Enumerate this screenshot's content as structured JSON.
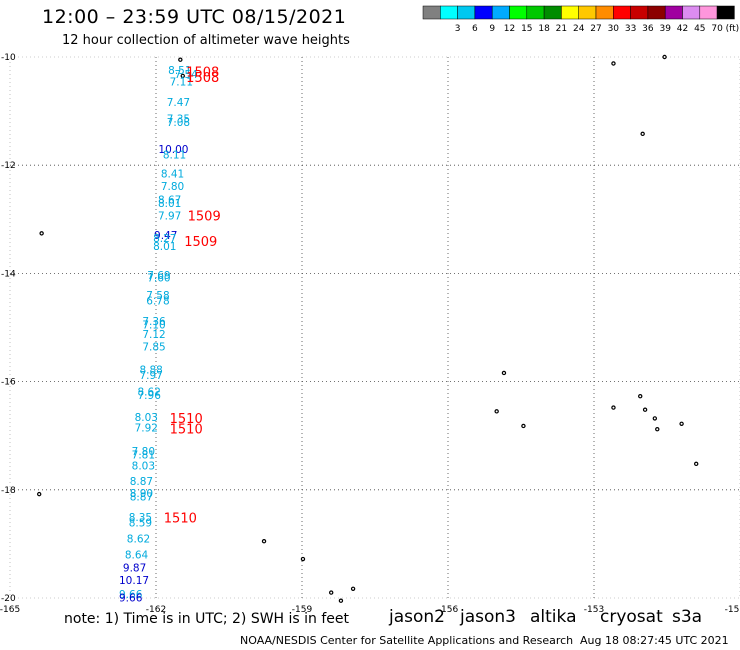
{
  "header": {
    "title": "12:00 – 23:59 UTC 08/15/2021",
    "subtitle": "12 hour collection of altimeter wave heights"
  },
  "legend": {
    "bins": [
      {
        "label": "",
        "color": "#808080"
      },
      {
        "label": "3",
        "color": "#00ffff"
      },
      {
        "label": "6",
        "color": "#00c8f0"
      },
      {
        "label": "9",
        "color": "#0000ff"
      },
      {
        "label": "12",
        "color": "#00aaff"
      },
      {
        "label": "15",
        "color": "#00ff00"
      },
      {
        "label": "18",
        "color": "#00c800"
      },
      {
        "label": "21",
        "color": "#008c00"
      },
      {
        "label": "24",
        "color": "#ffff00"
      },
      {
        "label": "27",
        "color": "#ffc800"
      },
      {
        "label": "30",
        "color": "#ff8c00"
      },
      {
        "label": "33",
        "color": "#ff0000"
      },
      {
        "label": "36",
        "color": "#c80000"
      },
      {
        "label": "39",
        "color": "#8c0000"
      },
      {
        "label": "42",
        "color": "#a000a0"
      },
      {
        "label": "45",
        "color": "#dc8cf0"
      },
      {
        "label": "70",
        "color": "#ff96dc"
      },
      {
        "label": "(ft)",
        "color": "#000000"
      }
    ]
  },
  "axes": {
    "lat_labels": [
      "-10",
      "-12",
      "-14",
      "-16",
      "-18",
      "-20"
    ],
    "lon_labels": [
      "-165",
      "-162",
      "-159",
      "-156",
      "-153",
      "-15"
    ]
  },
  "wave_heights": [
    {
      "value": "8.51",
      "lon": -161.75,
      "lat": -10.24,
      "color": "#00aadd"
    },
    {
      "value": "7.54",
      "lon": -161.62,
      "lat": -10.31,
      "color": "#00aadd"
    },
    {
      "value": "7.11",
      "lon": -161.72,
      "lat": -10.45,
      "color": "#00aadd"
    },
    {
      "value": "7.47",
      "lon": -161.78,
      "lat": -10.83,
      "color": "#00aadd"
    },
    {
      "value": "7.35",
      "lon": -161.78,
      "lat": -11.14,
      "color": "#00aadd"
    },
    {
      "value": "7.08",
      "lon": -161.78,
      "lat": -11.2,
      "color": "#00aadd"
    },
    {
      "value": "10.00",
      "lon": -161.95,
      "lat": -11.7,
      "color": "#0000cc"
    },
    {
      "value": "8.11",
      "lon": -161.86,
      "lat": -11.8,
      "color": "#00aadd"
    },
    {
      "value": "8.41",
      "lon": -161.9,
      "lat": -12.15,
      "color": "#00aadd"
    },
    {
      "value": "7.80",
      "lon": -161.9,
      "lat": -12.38,
      "color": "#00aadd"
    },
    {
      "value": "8.67",
      "lon": -161.96,
      "lat": -12.63,
      "color": "#00aadd"
    },
    {
      "value": "8.01",
      "lon": -161.96,
      "lat": -12.7,
      "color": "#00aadd"
    },
    {
      "value": "7.97",
      "lon": -161.96,
      "lat": -12.93,
      "color": "#00aadd"
    },
    {
      "value": "9.47",
      "lon": -162.04,
      "lat": -13.29,
      "color": "#0000cc"
    },
    {
      "value": "8.27",
      "lon": -162.06,
      "lat": -13.35,
      "color": "#00aadd"
    },
    {
      "value": "8.01",
      "lon": -162.06,
      "lat": -13.49,
      "color": "#00aadd"
    },
    {
      "value": "7.69",
      "lon": -162.18,
      "lat": -14.03,
      "color": "#00aadd"
    },
    {
      "value": "7.60",
      "lon": -162.18,
      "lat": -14.08,
      "color": "#00aadd"
    },
    {
      "value": "7.58",
      "lon": -162.2,
      "lat": -14.4,
      "color": "#00aadd"
    },
    {
      "value": "6.78",
      "lon": -162.2,
      "lat": -14.5,
      "color": "#00aadd"
    },
    {
      "value": "7.36",
      "lon": -162.28,
      "lat": -14.88,
      "color": "#00aadd"
    },
    {
      "value": "7.10",
      "lon": -162.28,
      "lat": -14.94,
      "color": "#00aadd"
    },
    {
      "value": "7.12",
      "lon": -162.28,
      "lat": -15.12,
      "color": "#00aadd"
    },
    {
      "value": "7.85",
      "lon": -162.28,
      "lat": -15.35,
      "color": "#00aadd"
    },
    {
      "value": "8.88",
      "lon": -162.34,
      "lat": -15.78,
      "color": "#00aadd"
    },
    {
      "value": "7.97",
      "lon": -162.34,
      "lat": -15.88,
      "color": "#00aadd"
    },
    {
      "value": "8.62",
      "lon": -162.38,
      "lat": -16.18,
      "color": "#00aadd"
    },
    {
      "value": "7.96",
      "lon": -162.38,
      "lat": -16.25,
      "color": "#00aadd"
    },
    {
      "value": "8.03",
      "lon": -162.44,
      "lat": -16.65,
      "color": "#00aadd"
    },
    {
      "value": "7.92",
      "lon": -162.44,
      "lat": -16.85,
      "color": "#00aadd"
    },
    {
      "value": "7.80",
      "lon": -162.5,
      "lat": -17.28,
      "color": "#00aadd"
    },
    {
      "value": "7.81",
      "lon": -162.5,
      "lat": -17.35,
      "color": "#00aadd"
    },
    {
      "value": "8.03",
      "lon": -162.5,
      "lat": -17.55,
      "color": "#00aadd"
    },
    {
      "value": "8.87",
      "lon": -162.54,
      "lat": -17.84,
      "color": "#00aadd"
    },
    {
      "value": "8.90",
      "lon": -162.54,
      "lat": -18.06,
      "color": "#00aadd"
    },
    {
      "value": "8.87",
      "lon": -162.54,
      "lat": -18.12,
      "color": "#00aadd"
    },
    {
      "value": "8.35",
      "lon": -162.56,
      "lat": -18.5,
      "color": "#00aadd"
    },
    {
      "value": "8.59",
      "lon": -162.56,
      "lat": -18.6,
      "color": "#00aadd"
    },
    {
      "value": "8.62",
      "lon": -162.6,
      "lat": -18.9,
      "color": "#00aadd"
    },
    {
      "value": "8.64",
      "lon": -162.64,
      "lat": -19.2,
      "color": "#00aadd"
    },
    {
      "value": "9.87",
      "lon": -162.68,
      "lat": -19.44,
      "color": "#0000cc"
    },
    {
      "value": "10.17",
      "lon": -162.76,
      "lat": -19.67,
      "color": "#0000cc"
    },
    {
      "value": "9.66",
      "lon": -162.76,
      "lat": -19.93,
      "color": "#00aadd"
    },
    {
      "value": "9.66",
      "lon": -162.76,
      "lat": -19.99,
      "color": "#0000cc"
    }
  ],
  "storm_labels": [
    {
      "text": "1508",
      "lon": -161.38,
      "lat": -10.27
    },
    {
      "text": "1508",
      "lon": -161.38,
      "lat": -10.37
    },
    {
      "text": "1509",
      "lon": -161.35,
      "lat": -12.93
    },
    {
      "text": "1509",
      "lon": -161.42,
      "lat": -13.4
    },
    {
      "text": "1510",
      "lon": -161.72,
      "lat": -16.67
    },
    {
      "text": "1510",
      "lon": -161.72,
      "lat": -16.87
    },
    {
      "text": "1510",
      "lon": -161.84,
      "lat": -18.51
    }
  ],
  "islands": [
    {
      "lon": -161.5,
      "lat": -10.05
    },
    {
      "lon": -161.45,
      "lat": -10.35
    },
    {
      "lon": -164.35,
      "lat": -13.26
    },
    {
      "lon": -152.6,
      "lat": -10.12
    },
    {
      "lon": -151.55,
      "lat": -10.0
    },
    {
      "lon": -152.0,
      "lat": -11.42
    },
    {
      "lon": -154.85,
      "lat": -15.84
    },
    {
      "lon": -155.0,
      "lat": -16.55
    },
    {
      "lon": -154.45,
      "lat": -16.82
    },
    {
      "lon": -152.6,
      "lat": -16.48
    },
    {
      "lon": -152.05,
      "lat": -16.27
    },
    {
      "lon": -151.95,
      "lat": -16.52
    },
    {
      "lon": -151.75,
      "lat": -16.68
    },
    {
      "lon": -151.7,
      "lat": -16.88
    },
    {
      "lon": -151.2,
      "lat": -16.78
    },
    {
      "lon": -150.9,
      "lat": -17.52
    },
    {
      "lon": -164.4,
      "lat": -18.08
    },
    {
      "lon": -159.78,
      "lat": -18.95
    },
    {
      "lon": -158.98,
      "lat": -19.28
    },
    {
      "lon": -158.4,
      "lat": -19.9
    },
    {
      "lon": -157.95,
      "lat": -19.83
    },
    {
      "lon": -158.2,
      "lat": -20.05
    }
  ],
  "footer": {
    "note": "note: 1) Time is in UTC; 2) SWH is in feet",
    "satellites": [
      {
        "name": "jason2",
        "color": "#0000ff"
      },
      {
        "name": "jason3",
        "color": "#00a000"
      },
      {
        "name": "altika",
        "color": "#ff9900"
      },
      {
        "name": "cryosat",
        "color": "#ff0000"
      },
      {
        "name": "s3a",
        "color": "#8b0000"
      }
    ],
    "credit": "NOAA/NESDIS Center for Satellite Applications and Research",
    "timestamp": "Aug 18 08:27:45 UTC 2021"
  }
}
